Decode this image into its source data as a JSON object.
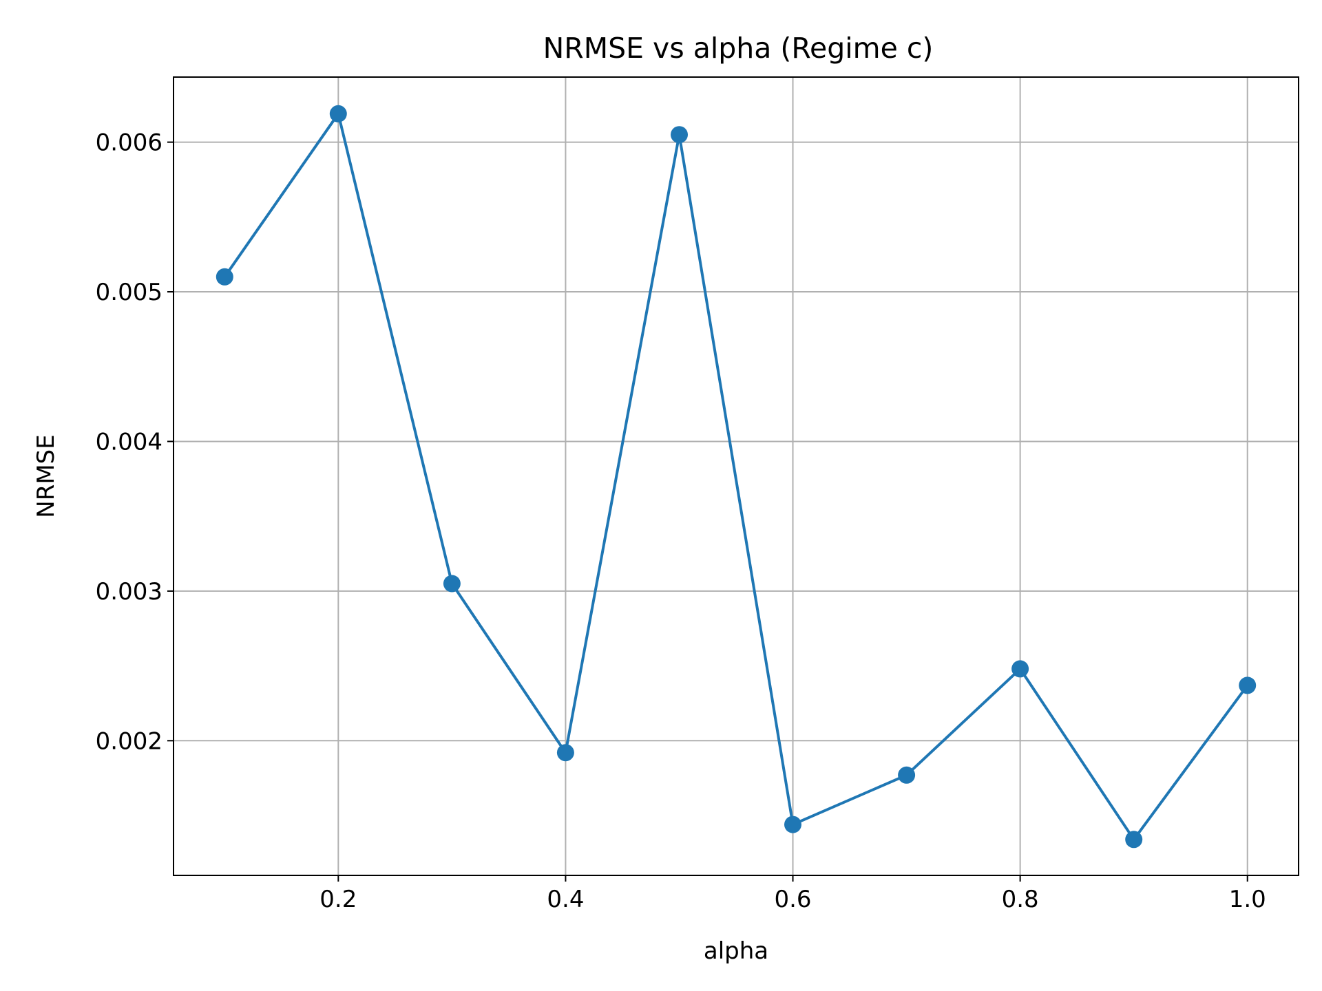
{
  "chart_data": {
    "type": "line",
    "title": "NRMSE vs alpha (Regime c)",
    "xlabel": "alpha",
    "ylabel": "NRMSE",
    "x": [
      0.1,
      0.2,
      0.3,
      0.4,
      0.5,
      0.6,
      0.7,
      0.8,
      0.9,
      1.0
    ],
    "series": [
      {
        "values": [
          0.0051,
          0.00619,
          0.00305,
          0.00192,
          0.00605,
          0.00144,
          0.00177,
          0.00248,
          0.00134,
          0.00237
        ],
        "color": "#1f77b4",
        "marker": "circle"
      }
    ],
    "xlim": [
      0.055,
      1.045
    ],
    "ylim": [
      0.0011,
      0.006435
    ],
    "xticks": [
      0.2,
      0.4,
      0.6,
      0.8,
      1.0
    ],
    "xtick_labels": [
      "0.2",
      "0.4",
      "0.6",
      "0.8",
      "1.0"
    ],
    "yticks": [
      0.002,
      0.003,
      0.004,
      0.005,
      0.006
    ],
    "ytick_labels": [
      "0.002",
      "0.003",
      "0.004",
      "0.005",
      "0.006"
    ],
    "grid": true
  }
}
